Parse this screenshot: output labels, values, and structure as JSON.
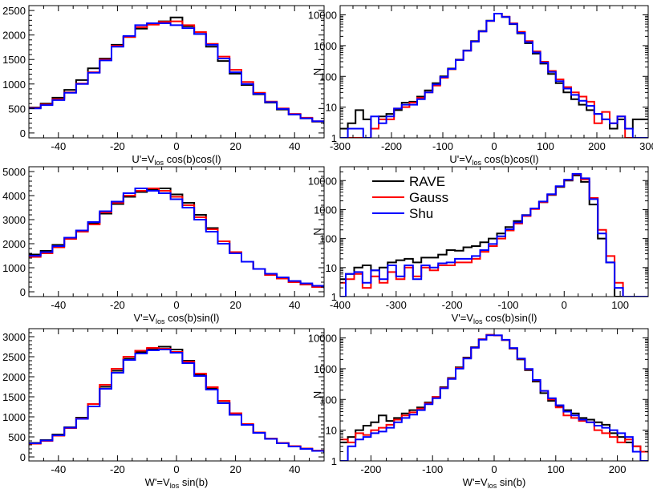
{
  "colors": {
    "RAVE": "#000000",
    "Gauss": "#ff0000",
    "Shu": "#0000ff"
  },
  "legend": {
    "entries": [
      "RAVE",
      "Gauss",
      "Shu"
    ],
    "placement": "top-left of middle-right panel"
  },
  "ylabel_log": "N",
  "chart_data": [
    {
      "type": "line",
      "scale": "linear",
      "xlabel": "U'=V_los cos(b)cos(l)",
      "xlim": [
        -50,
        50
      ],
      "ylim": [
        -100,
        2600
      ],
      "xticks": [
        -40,
        -20,
        0,
        20,
        40
      ],
      "yticks": [
        0,
        500,
        1000,
        1500,
        2000,
        2500
      ],
      "x": [
        -50,
        -46,
        -42,
        -38,
        -34,
        -30,
        -26,
        -22,
        -18,
        -14,
        -10,
        -6,
        -2,
        2,
        6,
        10,
        14,
        18,
        22,
        26,
        30,
        34,
        38,
        42,
        46,
        50
      ],
      "series": [
        {
          "name": "RAVE",
          "values": [
            520,
            600,
            720,
            880,
            1080,
            1320,
            1520,
            1800,
            1960,
            2130,
            2230,
            2280,
            2360,
            2180,
            2020,
            1760,
            1470,
            1210,
            980,
            790,
            620,
            480,
            380,
            300,
            230,
            180
          ]
        },
        {
          "name": "Gauss",
          "values": [
            510,
            580,
            690,
            830,
            1010,
            1240,
            1500,
            1780,
            1960,
            2160,
            2210,
            2270,
            2280,
            2200,
            2060,
            1820,
            1560,
            1290,
            1040,
            820,
            640,
            500,
            390,
            310,
            240,
            190
          ]
        },
        {
          "name": "Shu",
          "values": [
            500,
            570,
            670,
            820,
            1000,
            1230,
            1480,
            1760,
            1980,
            2200,
            2240,
            2240,
            2200,
            2140,
            2020,
            1800,
            1520,
            1240,
            1000,
            800,
            630,
            490,
            380,
            300,
            240,
            180
          ]
        }
      ]
    },
    {
      "type": "line",
      "scale": "log",
      "xlabel": "U'=V_los cos(b)cos(l)",
      "xlim": [
        -300,
        300
      ],
      "ylim": [
        1,
        20000
      ],
      "xticks": [
        -300,
        -200,
        -100,
        0,
        100,
        200,
        300
      ],
      "yticks": [
        1,
        10,
        100,
        1000,
        10000
      ],
      "x": [
        -300,
        -285,
        -270,
        -255,
        -240,
        -225,
        -210,
        -195,
        -180,
        -165,
        -150,
        -135,
        -120,
        -105,
        -90,
        -75,
        -60,
        -45,
        -30,
        -15,
        0,
        15,
        30,
        45,
        60,
        75,
        90,
        105,
        120,
        135,
        150,
        165,
        180,
        195,
        210,
        225,
        240,
        255,
        270,
        285
      ],
      "series": [
        {
          "name": "RAVE",
          "values": [
            2,
            3,
            8,
            4,
            2,
            5,
            6,
            8,
            14,
            15,
            22,
            35,
            60,
            100,
            180,
            350,
            700,
            1400,
            3000,
            6500,
            11000,
            8500,
            5000,
            2500,
            1200,
            550,
            260,
            120,
            60,
            30,
            18,
            12,
            8,
            6,
            4,
            2,
            4,
            2,
            4,
            4
          ]
        },
        {
          "name": "Gauss",
          "values": [
            1,
            1,
            1,
            1,
            2,
            4,
            4,
            9,
            10,
            14,
            20,
            30,
            50,
            90,
            170,
            340,
            680,
            1350,
            2900,
            6300,
            11000,
            8800,
            5300,
            2800,
            1400,
            650,
            300,
            150,
            80,
            45,
            30,
            22,
            15,
            3,
            7,
            3,
            5,
            1,
            1,
            1
          ]
        },
        {
          "name": "Shu",
          "values": [
            1,
            2,
            2,
            1,
            5,
            3,
            5,
            9,
            12,
            12,
            18,
            30,
            55,
            95,
            175,
            340,
            680,
            1350,
            2900,
            6400,
            11000,
            8600,
            5100,
            2600,
            1300,
            600,
            280,
            140,
            70,
            40,
            25,
            16,
            11,
            6,
            4,
            3,
            5,
            2,
            1,
            1
          ]
        }
      ]
    },
    {
      "type": "line",
      "scale": "linear",
      "xlabel": "V'=V_los cos(b)sin(l)",
      "xlim": [
        -50,
        50
      ],
      "ylim": [
        -200,
        5200
      ],
      "xticks": [
        -40,
        -20,
        0,
        20,
        40
      ],
      "yticks": [
        0,
        1000,
        2000,
        3000,
        4000,
        5000
      ],
      "x": [
        -50,
        -46,
        -42,
        -38,
        -34,
        -30,
        -26,
        -22,
        -18,
        -14,
        -10,
        -6,
        -2,
        2,
        6,
        10,
        14,
        18,
        22,
        26,
        30,
        34,
        38,
        42,
        46,
        50
      ],
      "series": [
        {
          "name": "RAVE",
          "values": [
            1550,
            1700,
            1950,
            2250,
            2550,
            2850,
            3250,
            3650,
            3950,
            4150,
            4250,
            4300,
            4050,
            3700,
            3200,
            2650,
            2100,
            1650,
            1250,
            950,
            700,
            550,
            400,
            300,
            200,
            150
          ]
        },
        {
          "name": "Gauss",
          "values": [
            1450,
            1600,
            1850,
            2200,
            2500,
            2800,
            3300,
            3700,
            4000,
            4200,
            4300,
            4200,
            3950,
            3600,
            3100,
            2600,
            2100,
            1650,
            1250,
            950,
            700,
            550,
            400,
            300,
            200,
            150
          ]
        },
        {
          "name": "Shu",
          "values": [
            1500,
            1650,
            1900,
            2250,
            2550,
            2900,
            3350,
            3750,
            4100,
            4300,
            4200,
            4100,
            3850,
            3500,
            3000,
            2500,
            2000,
            1600,
            1250,
            950,
            750,
            600,
            450,
            350,
            250,
            150
          ]
        }
      ]
    },
    {
      "type": "line",
      "scale": "log",
      "xlabel": "V'=V_los cos(b)sin(l)",
      "xlim": [
        -400,
        150
      ],
      "ylim": [
        1,
        30000
      ],
      "xticks": [
        -400,
        -300,
        -200,
        -100,
        0,
        100
      ],
      "yticks": [
        1,
        10,
        100,
        1000,
        10000
      ],
      "x": [
        -400,
        -390,
        -375,
        -360,
        -345,
        -330,
        -315,
        -300,
        -285,
        -270,
        -255,
        -240,
        -225,
        -210,
        -195,
        -180,
        -165,
        -150,
        -135,
        -120,
        -105,
        -90,
        -75,
        -60,
        -45,
        -30,
        -15,
        0,
        15,
        30,
        45,
        60,
        75,
        90,
        105
      ],
      "series": [
        {
          "name": "RAVE",
          "values": [
            4,
            6,
            10,
            12,
            8,
            10,
            15,
            18,
            20,
            15,
            22,
            22,
            28,
            40,
            38,
            50,
            55,
            75,
            100,
            150,
            250,
            400,
            650,
            1100,
            1800,
            3200,
            6000,
            10000,
            15000,
            9000,
            1500,
            100,
            15,
            1,
            1
          ]
        },
        {
          "name": "Gauss",
          "values": [
            3,
            4,
            6,
            2,
            5,
            3,
            7,
            4,
            10,
            5,
            10,
            8,
            12,
            12,
            15,
            15,
            20,
            35,
            55,
            100,
            190,
            330,
            600,
            1050,
            1800,
            3300,
            6300,
            10500,
            16500,
            11000,
            2500,
            200,
            25,
            3,
            1
          ]
        },
        {
          "name": "Shu",
          "values": [
            1,
            6,
            7,
            3,
            8,
            4,
            12,
            5,
            12,
            4,
            12,
            10,
            14,
            15,
            20,
            20,
            25,
            40,
            65,
            120,
            210,
            360,
            640,
            1100,
            1900,
            3400,
            6400,
            10800,
            17000,
            12000,
            2300,
            150,
            15,
            2,
            1
          ]
        }
      ]
    },
    {
      "type": "line",
      "scale": "linear",
      "xlabel": "W'=V_los sin(b)",
      "xlim": [
        -50,
        50
      ],
      "ylim": [
        -100,
        3200
      ],
      "xticks": [
        -40,
        -20,
        0,
        20,
        40
      ],
      "yticks": [
        0,
        500,
        1000,
        1500,
        2000,
        2500,
        3000
      ],
      "x": [
        -50,
        -46,
        -42,
        -38,
        -34,
        -30,
        -26,
        -22,
        -18,
        -14,
        -10,
        -6,
        -2,
        2,
        6,
        10,
        14,
        18,
        22,
        26,
        30,
        34,
        38,
        42,
        46,
        50
      ],
      "series": [
        {
          "name": "RAVE",
          "values": [
            350,
            420,
            560,
            740,
            980,
            1320,
            1750,
            2150,
            2450,
            2620,
            2700,
            2750,
            2680,
            2400,
            2050,
            1700,
            1350,
            1050,
            800,
            600,
            450,
            340,
            260,
            200,
            150,
            110
          ]
        },
        {
          "name": "Gauss",
          "values": [
            330,
            400,
            530,
            720,
            960,
            1320,
            1800,
            2200,
            2500,
            2650,
            2720,
            2700,
            2620,
            2380,
            2080,
            1740,
            1400,
            1090,
            820,
            610,
            460,
            350,
            270,
            210,
            160,
            120
          ]
        },
        {
          "name": "Shu",
          "values": [
            340,
            410,
            540,
            730,
            950,
            1260,
            1700,
            2100,
            2420,
            2580,
            2660,
            2680,
            2600,
            2340,
            2020,
            1680,
            1340,
            1050,
            800,
            600,
            450,
            340,
            260,
            200,
            150,
            110
          ]
        }
      ]
    },
    {
      "type": "line",
      "scale": "log",
      "xlabel": "W'=V_los sin(b)",
      "xlim": [
        -250,
        250
      ],
      "ylim": [
        1,
        20000
      ],
      "xticks": [
        -200,
        -100,
        0,
        100,
        200
      ],
      "yticks": [
        1,
        10,
        100,
        1000,
        10000
      ],
      "x": [
        -250,
        -237.5,
        -225,
        -212.5,
        -200,
        -187.5,
        -175,
        -162.5,
        -150,
        -137.5,
        -125,
        -112.5,
        -100,
        -87.5,
        -75,
        -62.5,
        -50,
        -37.5,
        -25,
        -12.5,
        0,
        12.5,
        25,
        37.5,
        50,
        62.5,
        75,
        87.5,
        100,
        112.5,
        125,
        137.5,
        150,
        162.5,
        175,
        187.5,
        200,
        212.5,
        225,
        237.5
      ],
      "series": [
        {
          "name": "RAVE",
          "values": [
            4,
            6,
            10,
            14,
            18,
            30,
            20,
            25,
            35,
            45,
            55,
            80,
            120,
            250,
            500,
            1100,
            2300,
            5000,
            9000,
            12500,
            12000,
            8500,
            4500,
            2000,
            900,
            380,
            160,
            90,
            60,
            45,
            35,
            25,
            22,
            18,
            15,
            8,
            6,
            4,
            3,
            2
          ]
        },
        {
          "name": "Gauss",
          "values": [
            5,
            4,
            8,
            7,
            10,
            12,
            15,
            22,
            30,
            38,
            50,
            75,
            120,
            240,
            480,
            1050,
            2200,
            4800,
            9000,
            12500,
            12000,
            8600,
            4600,
            2100,
            950,
            420,
            190,
            100,
            55,
            30,
            25,
            20,
            18,
            10,
            8,
            6,
            4,
            5,
            3,
            2
          ]
        },
        {
          "name": "Shu",
          "values": [
            1,
            3,
            5,
            6,
            8,
            9,
            12,
            18,
            25,
            32,
            45,
            70,
            110,
            230,
            460,
            1000,
            2150,
            4800,
            8800,
            12200,
            12200,
            8700,
            4700,
            2150,
            980,
            430,
            190,
            110,
            65,
            40,
            30,
            22,
            18,
            14,
            12,
            10,
            8,
            6,
            2,
            1
          ]
        }
      ]
    }
  ]
}
